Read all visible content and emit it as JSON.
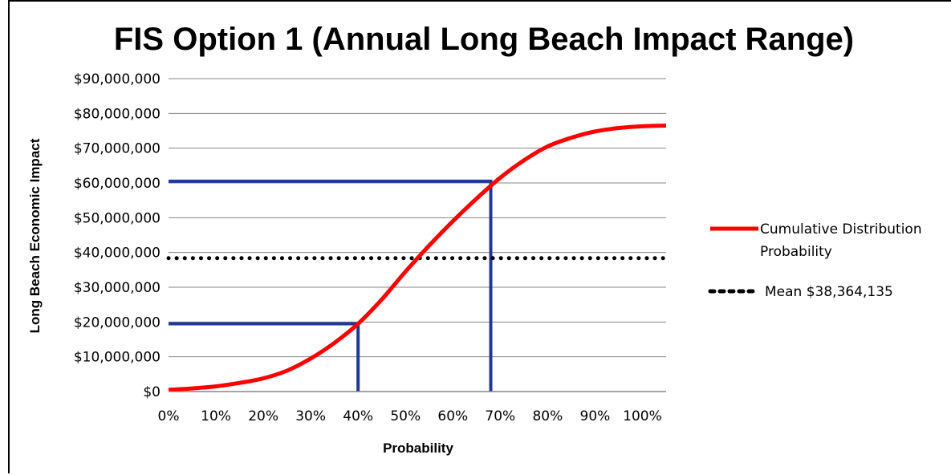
{
  "chart_data": {
    "type": "line",
    "title": "FIS Option 1 (Annual Long Beach Impact Range)",
    "xlabel": "Probability",
    "ylabel": "Long Beach Economic Impact",
    "xlim": [
      0,
      1.05
    ],
    "ylim": [
      0,
      90000000
    ],
    "x_ticks": [
      0,
      0.1,
      0.2,
      0.3,
      0.4,
      0.5,
      0.6,
      0.7,
      0.8,
      0.9,
      1.0
    ],
    "x_tick_labels": [
      "0%",
      "10%",
      "20%",
      "30%",
      "40%",
      "50%",
      "60%",
      "70%",
      "80%",
      "90%",
      "100%"
    ],
    "y_ticks": [
      0,
      10000000,
      20000000,
      30000000,
      40000000,
      50000000,
      60000000,
      70000000,
      80000000,
      90000000
    ],
    "y_tick_labels": [
      "$0",
      "$10,000,000",
      "$20,000,000",
      "$30,000,000",
      "$40,000,000",
      "$50,000,000",
      "$60,000,000",
      "$70,000,000",
      "$80,000,000",
      "$90,000,000"
    ],
    "grid": "horizontal",
    "legend_position": "right",
    "series": [
      {
        "name": "Cumulative Distribution Probability",
        "style": "solid",
        "color": "#ff0000",
        "points": [
          [
            0.0,
            500000
          ],
          [
            0.05,
            900000
          ],
          [
            0.1,
            1500000
          ],
          [
            0.15,
            2500000
          ],
          [
            0.2,
            3800000
          ],
          [
            0.25,
            6000000
          ],
          [
            0.3,
            9500000
          ],
          [
            0.35,
            14000000
          ],
          [
            0.4,
            19500000
          ],
          [
            0.45,
            26500000
          ],
          [
            0.5,
            34500000
          ],
          [
            0.55,
            42000000
          ],
          [
            0.6,
            49000000
          ],
          [
            0.65,
            55500000
          ],
          [
            0.7,
            61500000
          ],
          [
            0.75,
            66500000
          ],
          [
            0.8,
            70500000
          ],
          [
            0.85,
            73000000
          ],
          [
            0.9,
            74800000
          ],
          [
            0.95,
            75800000
          ],
          [
            1.0,
            76300000
          ],
          [
            1.05,
            76500000
          ]
        ]
      },
      {
        "name": "Mean $38,364,135",
        "style": "dotted",
        "color": "#000000",
        "y": 38364135
      }
    ],
    "reference_lines": [
      {
        "color": "#1f3a93",
        "x": 0.4,
        "y": 19500000
      },
      {
        "color": "#1f3a93",
        "x": 0.68,
        "y": 60500000
      }
    ]
  }
}
